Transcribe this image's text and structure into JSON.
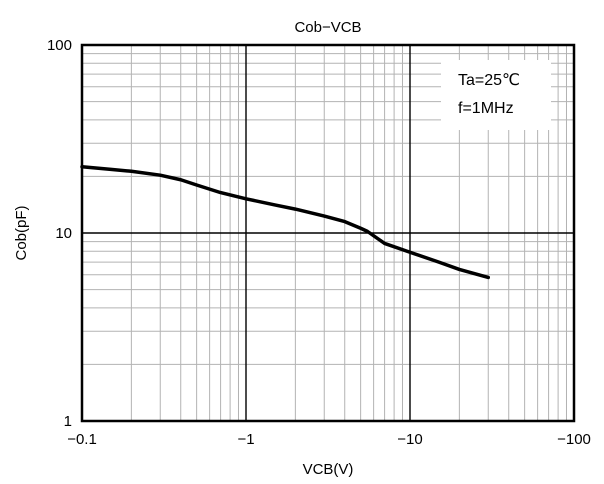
{
  "chart_data": {
    "type": "line",
    "title": "Cob−VCB",
    "xlabel": "VCB(V)",
    "ylabel": "Cob(pF)",
    "x_scale": "log",
    "y_scale": "log",
    "x_direction": "negative",
    "xlim": [
      -0.1,
      -100
    ],
    "ylim": [
      1,
      100
    ],
    "x_ticks": [
      {
        "value": -0.1,
        "label": "−0.1"
      },
      {
        "value": -1,
        "label": "−1"
      },
      {
        "value": -10,
        "label": "−10"
      },
      {
        "value": -100,
        "label": "−100"
      }
    ],
    "y_ticks": [
      {
        "value": 1,
        "label": "1"
      },
      {
        "value": 10,
        "label": "10"
      },
      {
        "value": 100,
        "label": "100"
      }
    ],
    "grid": true,
    "annotations": [
      "Ta=25℃",
      "f=1MHz"
    ],
    "series": [
      {
        "x": [
          -0.1,
          -0.15,
          -0.2,
          -0.3,
          -0.4,
          -0.5,
          -0.7,
          -1,
          -1.5,
          -2,
          -3,
          -4,
          -5,
          -5.5,
          -7,
          -10,
          -15,
          -20,
          -30
        ],
        "y": [
          22.5,
          21.8,
          21.3,
          20.3,
          19.2,
          18.0,
          16.4,
          15.2,
          14.1,
          13.4,
          12.3,
          11.5,
          10.6,
          10.2,
          8.8,
          7.9,
          7.0,
          6.4,
          5.8
        ]
      }
    ]
  }
}
